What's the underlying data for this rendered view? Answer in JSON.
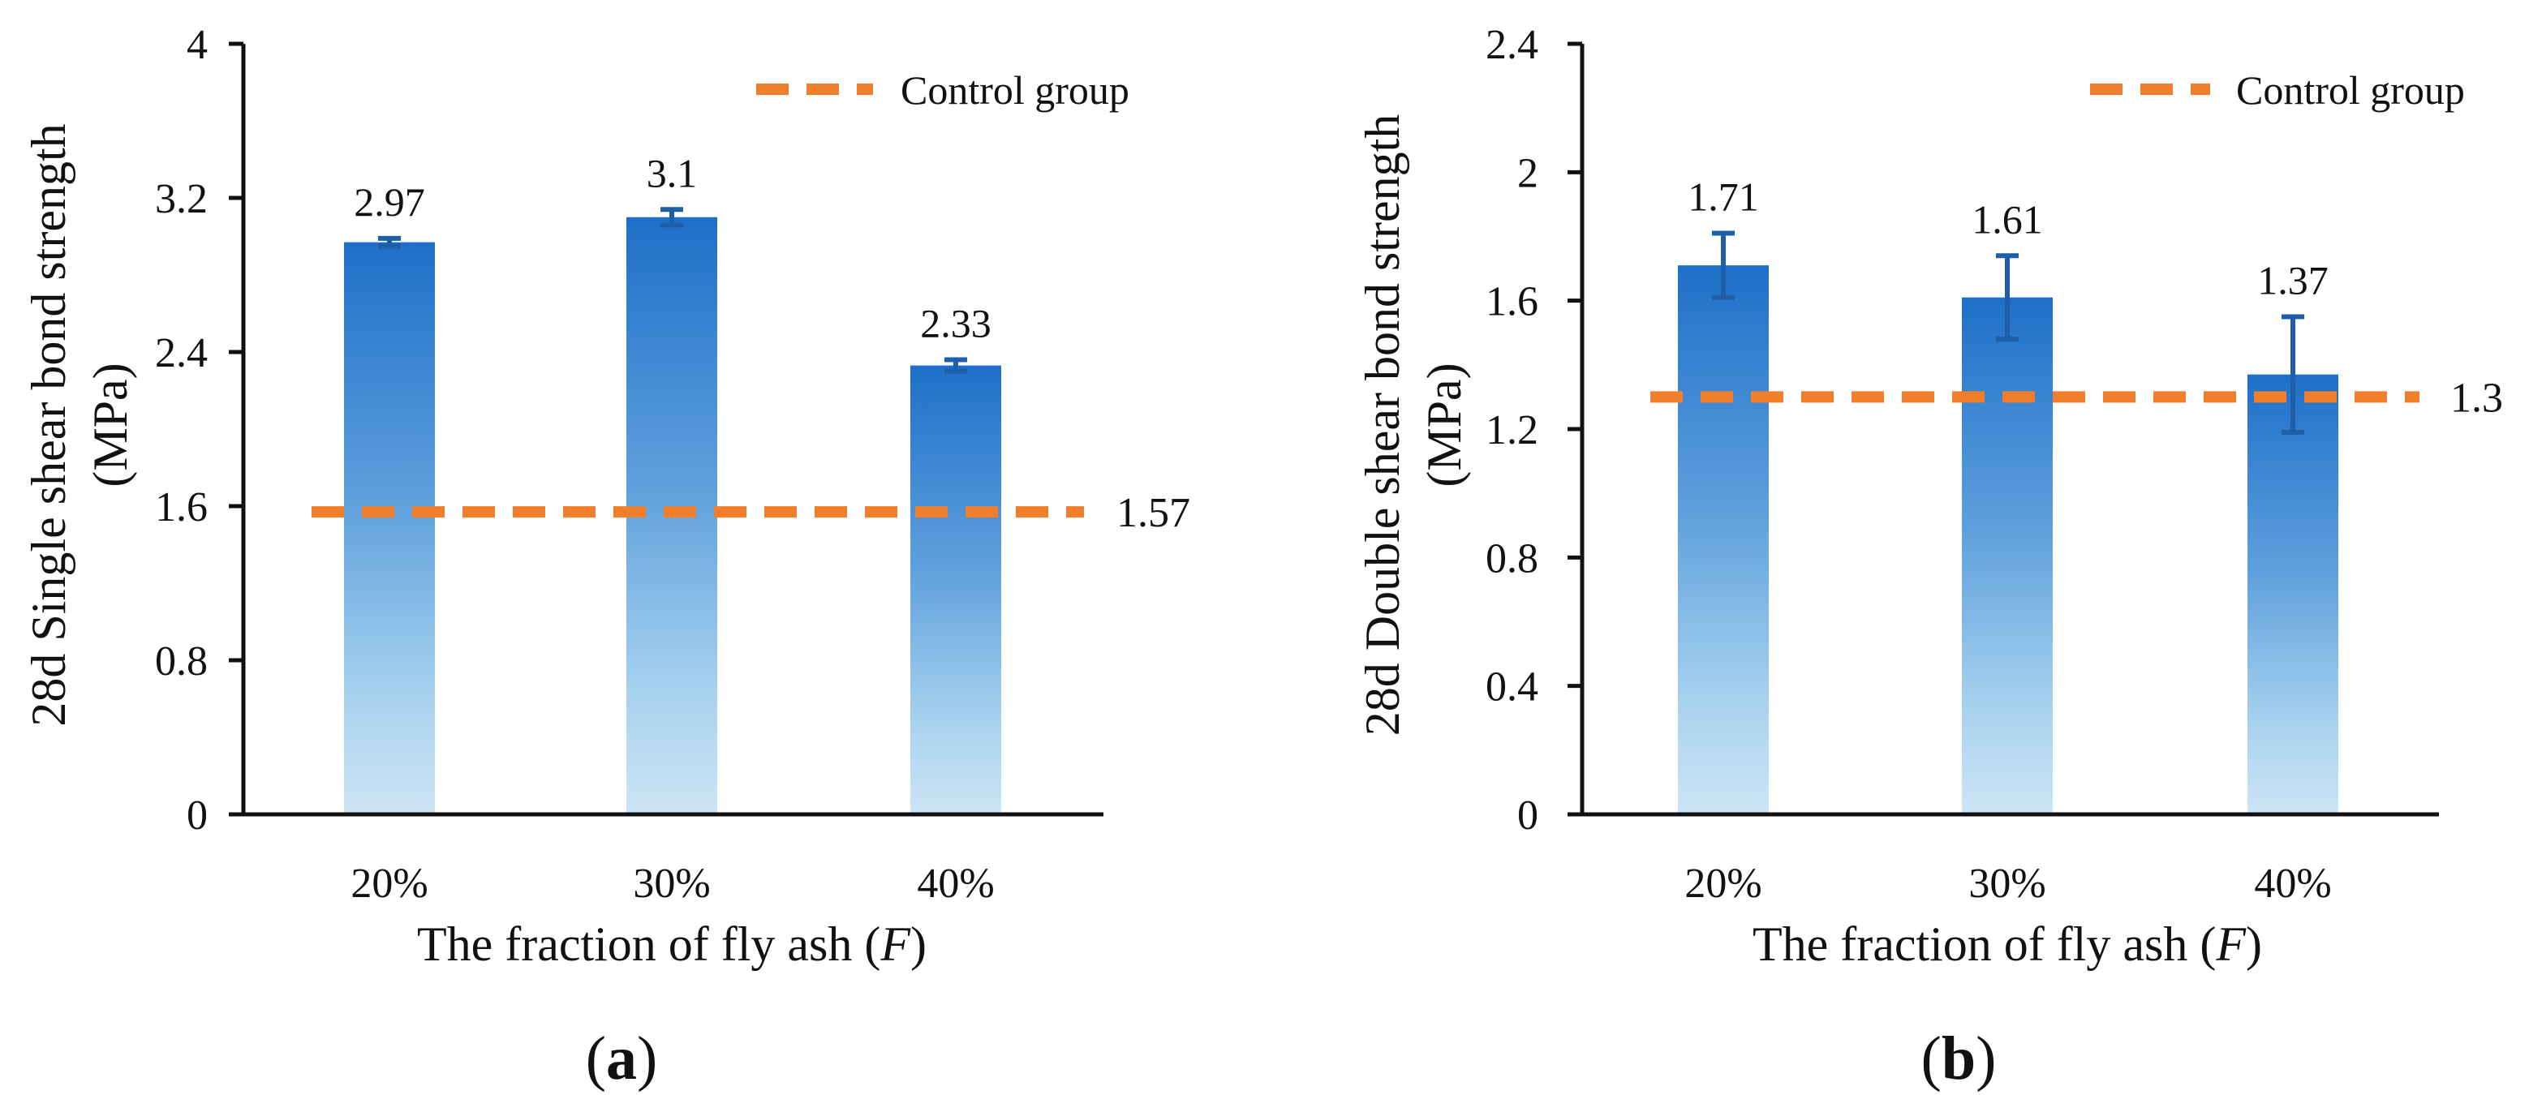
{
  "panels": [
    {
      "panel_label": "a",
      "chart_data": {
        "type": "bar",
        "title": "",
        "xlabel": "The fraction of fly ash (F)",
        "xlabel_main": "The fraction of fly ash (",
        "xlabel_var": "F",
        "xlabel_end": ")",
        "ylabel_line1": "28d Single shear bond strength",
        "ylabel_line2": "(MPa)",
        "categories": [
          "20%",
          "30%",
          "40%"
        ],
        "values": [
          2.97,
          3.1,
          2.33
        ],
        "value_labels": [
          "2.97",
          "3.1",
          "2.33"
        ],
        "error": [
          0.02,
          0.04,
          0.03
        ],
        "ylim": [
          0,
          4
        ],
        "yticks": [
          0,
          0.8,
          1.6,
          2.4,
          3.2,
          4
        ],
        "ytick_labels": [
          "0",
          "0.8",
          "1.6",
          "2.4",
          "3.2",
          "4"
        ],
        "reference_line": {
          "name": "Control group",
          "value": 1.57,
          "label": "1.57",
          "color": "#F07F2D"
        },
        "legend_position": "top-right",
        "grid": false
      }
    },
    {
      "panel_label": "b",
      "chart_data": {
        "type": "bar",
        "title": "",
        "xlabel": "The fraction of fly ash (F)",
        "xlabel_main": "The fraction of fly ash (",
        "xlabel_var": "F",
        "xlabel_end": ")",
        "ylabel_line1": "28d Double shear bond strength",
        "ylabel_line2": "(MPa)",
        "categories": [
          "20%",
          "30%",
          "40%"
        ],
        "values": [
          1.71,
          1.61,
          1.37
        ],
        "value_labels": [
          "1.71",
          "1.61",
          "1.37"
        ],
        "error": [
          0.1,
          0.13,
          0.18
        ],
        "ylim": [
          0,
          2.4
        ],
        "yticks": [
          0,
          0.4,
          0.8,
          1.2,
          1.6,
          2,
          2.4
        ],
        "ytick_labels": [
          "0",
          "0.4",
          "0.8",
          "1.2",
          "1.6",
          "2",
          "2.4"
        ],
        "reference_line": {
          "name": "Control group",
          "value": 1.3,
          "label": "1.3",
          "color": "#F07F2D"
        },
        "legend_position": "top-right",
        "grid": false
      }
    }
  ],
  "colors": {
    "bar_top": "#1E6FC9",
    "bar_bottom": "#C9E3F5",
    "error_bar": "#1F5FA8",
    "reference": "#F07F2D",
    "axis": "#111111"
  }
}
